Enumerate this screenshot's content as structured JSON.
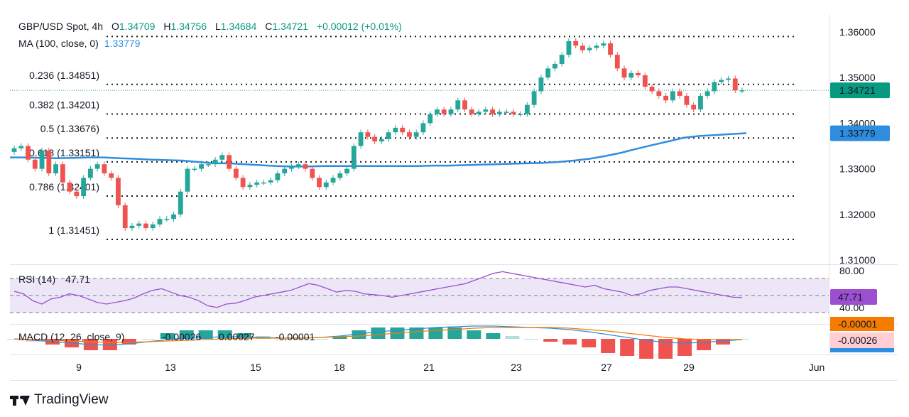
{
  "header": {
    "symbol": "GBP/USD Spot",
    "timeframe": "4h",
    "open_label": "O",
    "open": "1.34709",
    "high_label": "H",
    "high": "1.34756",
    "low_label": "L",
    "low": "1.34684",
    "close_label": "C",
    "close": "1.34721",
    "change": "+0.00012 (+0.01%)",
    "ma_label": "MA (100, close, 0)",
    "ma_value": "1.33779"
  },
  "colors": {
    "up": "#26a69a",
    "down": "#ef5350",
    "ma": "#2f8ddf",
    "rsi": "#9c4fd1",
    "macd": "#2f8ddf",
    "signal": "#f57c00"
  },
  "chart_data": [
    {
      "type": "candlestick",
      "x_ticks": [
        "9",
        "13",
        "15",
        "18",
        "21",
        "23",
        "27",
        "29",
        "Jun"
      ],
      "y_ticks": [
        "1.36000",
        "1.35000",
        "1.34000",
        "1.33000",
        "1.32000",
        "1.31000"
      ],
      "ylim": [
        1.31,
        1.36
      ],
      "fib_levels": [
        {
          "label": "0.236 (1.34851)",
          "value": 1.34851
        },
        {
          "label": "0.382 (1.34201)",
          "value": 1.34201
        },
        {
          "label": "0.5 (1.33676)",
          "value": 1.33676
        },
        {
          "label": "0.618 (1.33151)",
          "value": 1.33151
        },
        {
          "label": "0.786 (1.32401)",
          "value": 1.32401
        },
        {
          "label": "1 (1.31451)",
          "value": 1.31451
        }
      ],
      "top_level": 1.359,
      "last_price": {
        "label": "1.34721",
        "value": 1.34721
      },
      "ma_price": {
        "label": "1.33779",
        "value": 1.33779
      },
      "closes": [
        1.3345,
        1.335,
        1.332,
        1.33,
        1.334,
        1.329,
        1.331,
        1.327,
        1.325,
        1.324,
        1.328,
        1.33,
        1.331,
        1.329,
        1.328,
        1.322,
        1.317,
        1.3175,
        1.318,
        1.317,
        1.3178,
        1.319,
        1.319,
        1.32,
        1.325,
        1.33,
        1.33,
        1.331,
        1.331,
        1.332,
        1.333,
        1.33,
        1.328,
        1.326,
        1.3265,
        1.327,
        1.327,
        1.3275,
        1.329,
        1.33,
        1.3305,
        1.331,
        1.33,
        1.328,
        1.326,
        1.327,
        1.328,
        1.329,
        1.33,
        1.335,
        1.338,
        1.337,
        1.336,
        1.3365,
        1.338,
        1.339,
        1.338,
        1.337,
        1.338,
        1.34,
        1.342,
        1.343,
        1.342,
        1.343,
        1.345,
        1.343,
        1.342,
        1.3425,
        1.343,
        1.342,
        1.3425,
        1.3425,
        1.342,
        1.342,
        1.344,
        1.347,
        1.35,
        1.352,
        1.353,
        1.355,
        1.358,
        1.357,
        1.356,
        1.3565,
        1.357,
        1.3575,
        1.355,
        1.352,
        1.35,
        1.351,
        1.3505,
        1.348,
        1.347,
        1.346,
        1.345,
        1.347,
        1.346,
        1.344,
        1.343,
        1.346,
        1.347,
        1.349,
        1.3495,
        1.3498,
        1.3472,
        1.3472
      ],
      "ma_values": [
        1.3325,
        1.3325,
        1.3324,
        1.3323,
        1.3324,
        1.3325,
        1.3325,
        1.3323,
        1.3322,
        1.332,
        1.3319,
        1.3318,
        1.3315,
        1.3312,
        1.3312,
        1.331,
        1.3308,
        1.3306,
        1.3305,
        1.3305,
        1.3306,
        1.3306,
        1.3306,
        1.3306,
        1.3306,
        1.3306,
        1.3306,
        1.3307,
        1.3307,
        1.3308,
        1.3309,
        1.331,
        1.3311,
        1.3312,
        1.3313,
        1.3315,
        1.3318,
        1.3322,
        1.3328,
        1.3335,
        1.3344,
        1.3352,
        1.336,
        1.3368,
        1.3372,
        1.3374,
        1.3376,
        1.3378
      ],
      "ma_x_indices": [
        0,
        2,
        4,
        6,
        8,
        10,
        12,
        14,
        16,
        18,
        20,
        22,
        24,
        26,
        28,
        30,
        32,
        34,
        36,
        38,
        40,
        42,
        44,
        46,
        48,
        50,
        52,
        54,
        56,
        58,
        60,
        62,
        64,
        66,
        68,
        70,
        72,
        74,
        76,
        78,
        80,
        82,
        84,
        86,
        88,
        90,
        92,
        94
      ]
    },
    {
      "type": "line",
      "name": "RSI (14)",
      "label": "RSI (14)",
      "value_label": "47.71",
      "y_ticks": [
        "80.00",
        "40.00"
      ],
      "ylim": [
        20,
        80
      ],
      "bands": [
        70,
        50,
        30
      ],
      "values": [
        55,
        52,
        44,
        40,
        46,
        48,
        52,
        50,
        46,
        42,
        40,
        42,
        44,
        47,
        52,
        56,
        58,
        54,
        50,
        48,
        44,
        38,
        36,
        40,
        41,
        44,
        48,
        50,
        52,
        54,
        56,
        60,
        64,
        62,
        58,
        54,
        56,
        55,
        52,
        51,
        50,
        48,
        50,
        52,
        54,
        56,
        58,
        60,
        62,
        64,
        68,
        72,
        76,
        78,
        76,
        74,
        72,
        70,
        68,
        66,
        64,
        62,
        60,
        62,
        58,
        56,
        54,
        50,
        52,
        56,
        58,
        60,
        60,
        58,
        56,
        54,
        52,
        50,
        48,
        47.71
      ]
    },
    {
      "type": "line",
      "name": "MACD (12, 26, close, 9)",
      "label": "MACD (12, 26, close, 9)",
      "values_label": [
        "-0.00026",
        "0.00027",
        "-0.00001"
      ],
      "axis_labels": [
        "-0.00001",
        "-0.00026"
      ],
      "macd": [
        0.0,
        -0.0002,
        -0.0004,
        -0.0006,
        -0.0008,
        -0.0009,
        -0.0007,
        -0.0004,
        -0.0001,
        0.0001,
        0.0002,
        0.0003,
        0.0003,
        0.0002,
        0.0001,
        0.0001,
        0.0002,
        0.0004,
        0.0007,
        0.001,
        0.0012,
        0.0014,
        0.0016,
        0.0017,
        0.0018,
        0.0018,
        0.0017,
        0.0016,
        0.0015,
        0.0013,
        0.001,
        0.0006,
        0.0002,
        -0.0002,
        -0.0005,
        -0.0006,
        -0.0005,
        -0.0003,
        -0.0001
      ],
      "signal": [
        0.0,
        -0.0001,
        -0.0002,
        -0.0003,
        -0.0004,
        -0.0005,
        -0.0005,
        -0.0004,
        -0.0003,
        -0.0002,
        -0.0001,
        0.0,
        0.0001,
        0.0001,
        0.0001,
        0.0001,
        0.0002,
        0.0003,
        0.0004,
        0.0006,
        0.0008,
        0.001,
        0.0012,
        0.0013,
        0.0015,
        0.0016,
        0.0016,
        0.0016,
        0.0016,
        0.0015,
        0.0013,
        0.0011,
        0.0008,
        0.0005,
        0.0002,
        0.0,
        -0.0001,
        -0.0001,
        -0.0001
      ]
    }
  ],
  "branding": {
    "logo_text": "TradingView"
  }
}
